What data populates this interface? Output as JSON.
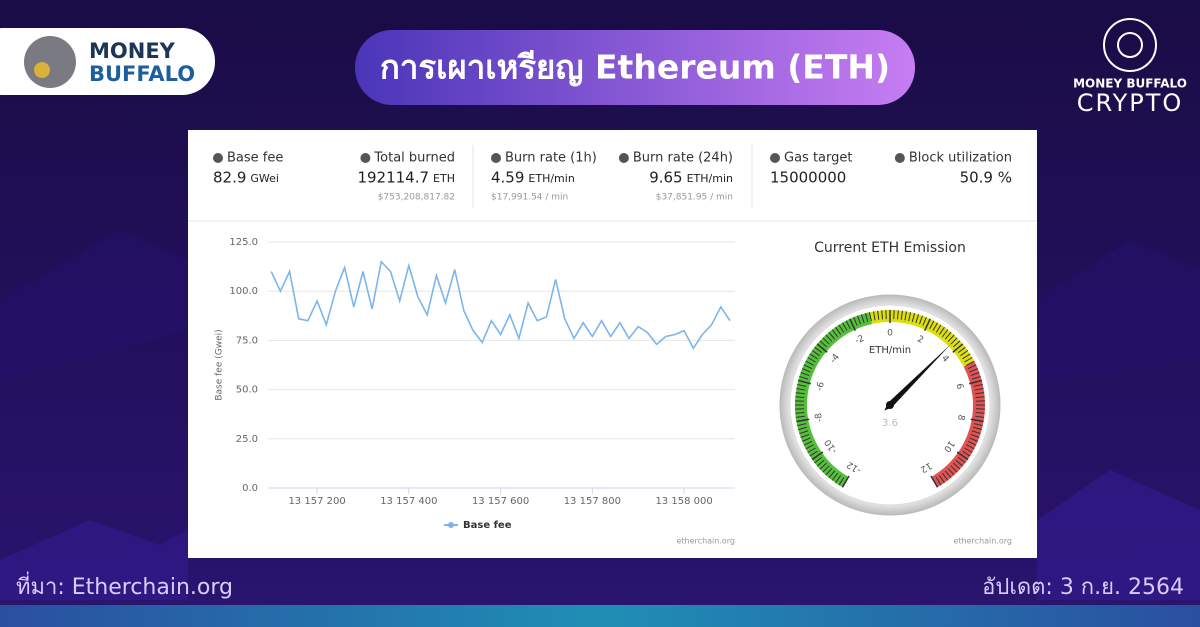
{
  "brand": {
    "line1": "MONEY",
    "line2": "BUFFALO"
  },
  "title": "การเผาเหรียญ Ethereum (ETH)",
  "crypto_logo": {
    "top": "MONEY BUFFALO",
    "bottom": "CRYPTO"
  },
  "stats": [
    {
      "label": "Base fee",
      "value": "82.9",
      "unit": "GWei"
    },
    {
      "label": "Total burned",
      "value": "192114.7",
      "unit": "ETH",
      "usd": "$753,208,817.82"
    },
    {
      "label": "Burn rate (1h)",
      "value": "4.59",
      "unit": "ETH/min",
      "usd": "$17,991.54 / min"
    },
    {
      "label": "Burn rate (24h)",
      "value": "9.65",
      "unit": "ETH/min",
      "usd": "$37,851.95 / min"
    },
    {
      "label": "Gas target",
      "value": "15000000"
    },
    {
      "label": "Block utilization",
      "value": "50.9 %"
    }
  ],
  "chart_data": [
    {
      "type": "line",
      "y_label": "Base fee (Gwei)",
      "credits": "etherchain.org",
      "x": [
        13157100,
        13157120,
        13157140,
        13157160,
        13157180,
        13157200,
        13157220,
        13157240,
        13157260,
        13157280,
        13157300,
        13157320,
        13157340,
        13157360,
        13157380,
        13157400,
        13157420,
        13157440,
        13157460,
        13157480,
        13157500,
        13157520,
        13157540,
        13157560,
        13157580,
        13157600,
        13157620,
        13157640,
        13157660,
        13157680,
        13157700,
        13157720,
        13157740,
        13157760,
        13157780,
        13157800,
        13157820,
        13157840,
        13157860,
        13157880,
        13157900,
        13157920,
        13157940,
        13157960,
        13157980,
        13158000,
        13158020,
        13158040,
        13158060,
        13158080,
        13158100
      ],
      "series": [
        {
          "name": "Base fee",
          "color": "#7cb5ec",
          "values": [
            110,
            100,
            110,
            86,
            85,
            95,
            83,
            100,
            112,
            92,
            110,
            91,
            115,
            110,
            95,
            113,
            97,
            88,
            108,
            94,
            111,
            90,
            80,
            74,
            85,
            78,
            88,
            76,
            94,
            85,
            87,
            106,
            86,
            76,
            84,
            77,
            85,
            77,
            84,
            76,
            82,
            79,
            73,
            77,
            78,
            80,
            71,
            78,
            83,
            92,
            85
          ]
        }
      ],
      "xlim": [
        13157093,
        13158111
      ],
      "ylim": [
        0,
        125
      ],
      "xticks": [
        {
          "value": 13157200,
          "label": "13 157 200"
        },
        {
          "value": 13157400,
          "label": "13 157 400"
        },
        {
          "value": 13157600,
          "label": "13 157 600"
        },
        {
          "value": 13157800,
          "label": "13 157 800"
        },
        {
          "value": 13158000,
          "label": "13 158 000"
        }
      ],
      "yticks": [
        {
          "value": 0,
          "label": "0.0"
        },
        {
          "value": 25,
          "label": "25.0"
        },
        {
          "value": 50,
          "label": "50.0"
        },
        {
          "value": 75,
          "label": "75.0"
        },
        {
          "value": 100,
          "label": "100.0"
        },
        {
          "value": 125,
          "label": "125.0"
        }
      ],
      "grid": true,
      "legend": "bottom"
    },
    {
      "type": "gauge",
      "title": "Current ETH Emission",
      "axis_title": "ETH/min",
      "credits": "etherchain.org",
      "value": 3.6,
      "ylim": [
        -12,
        12
      ],
      "yticks": [
        -12,
        -10,
        -8,
        -6,
        -4,
        -2,
        0,
        2,
        4,
        6,
        8,
        10,
        12
      ],
      "bands": [
        {
          "from": -12,
          "to": -1,
          "color": "#55bf3b"
        },
        {
          "from": -1,
          "to": 5,
          "color": "#dddf0d"
        },
        {
          "from": 5,
          "to": 12,
          "color": "#df5353"
        }
      ]
    }
  ],
  "footer": {
    "source": "ที่มา: Etherchain.org",
    "updated": "อัปเดต: 3 ก.ย. 2564"
  }
}
